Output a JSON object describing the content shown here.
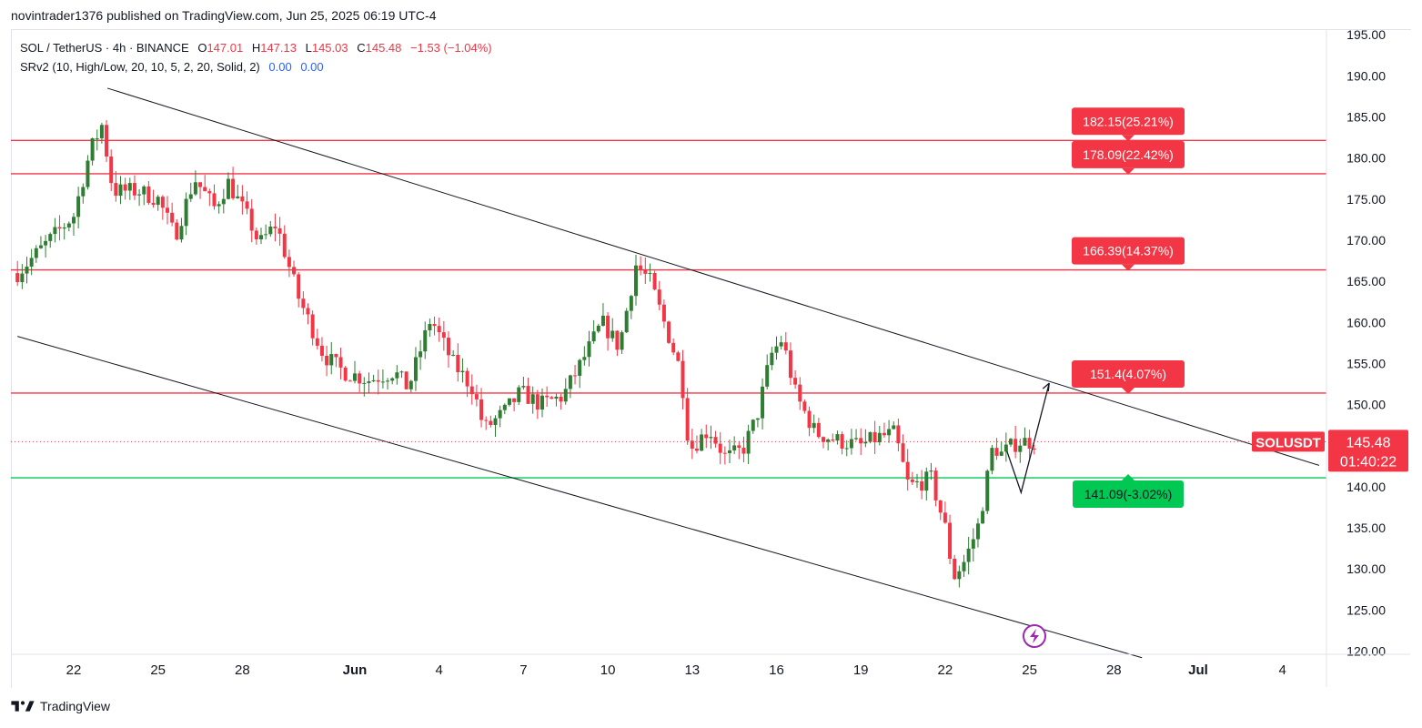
{
  "header": {
    "published_text": "novintrader1376 published on TradingView.com, Jun 25, 2025 06:19 UTC-4"
  },
  "legend": {
    "symbol_line": "SOL / TetherUS · 4h · BINANCE",
    "o_label": "O",
    "o_value": "147.01",
    "h_label": "H",
    "h_value": "147.13",
    "l_label": "L",
    "l_value": "145.03",
    "c_label": "C",
    "c_value": "145.48",
    "change": "−1.53 (−1.04%)",
    "indicator": "SRv2 (10, High/Low, 20, 10, 5, 2, 20, Solid, 2)",
    "indicator_v1": "0.00",
    "indicator_v2": "0.00"
  },
  "footer": {
    "brand": "TradingView"
  },
  "colors": {
    "up": "#22ab94",
    "down": "#f23645",
    "green_dark": "#2e7d32",
    "resistance": "#f23645",
    "support": "#00c853",
    "trend": "#131722",
    "grid": "#f0f3fa",
    "axis_text": "#131722"
  },
  "chart_data": {
    "type": "candlestick",
    "symbol": "SOLUSDT",
    "timeframe": "4h",
    "last_price": "145.48",
    "countdown": "01:40:22",
    "y_axis": {
      "ylim": [
        119,
        196
      ],
      "ticks": [
        "120.00",
        "125.00",
        "130.00",
        "135.00",
        "140.00",
        "145.00",
        "150.00",
        "155.00",
        "160.00",
        "165.00",
        "170.00",
        "175.00",
        "180.00",
        "185.00",
        "190.00",
        "195.00"
      ]
    },
    "x_axis": {
      "ticks": [
        {
          "label": "22",
          "day": 22.0
        },
        {
          "label": "25",
          "day": 25.0
        },
        {
          "label": "28",
          "day": 28.0
        },
        {
          "label": "Jun",
          "day": 32.0
        },
        {
          "label": "4",
          "day": 35.0
        },
        {
          "label": "7",
          "day": 38.0
        },
        {
          "label": "10",
          "day": 41.0
        },
        {
          "label": "13",
          "day": 44.0
        },
        {
          "label": "16",
          "day": 47.0
        },
        {
          "label": "19",
          "day": 50.0
        },
        {
          "label": "22",
          "day": 53.0
        },
        {
          "label": "25",
          "day": 56.0
        },
        {
          "label": "28",
          "day": 59.0
        },
        {
          "label": "Jul",
          "day": 62.0
        },
        {
          "label": "4",
          "day": 65.0
        }
      ]
    },
    "levels": [
      {
        "price": 182.15,
        "label": "182.15(25.21%)",
        "kind": "resistance"
      },
      {
        "price": 178.09,
        "label": "178.09(22.42%)",
        "kind": "resistance"
      },
      {
        "price": 166.39,
        "label": "166.39(14.37%)",
        "kind": "resistance"
      },
      {
        "price": 151.4,
        "label": "151.4(4.07%)",
        "kind": "resistance"
      },
      {
        "price": 141.09,
        "label": "141.09(-3.02%)",
        "kind": "support"
      }
    ],
    "trendlines": [
      {
        "x1": 23.2,
        "y1": 188.5,
        "x2": 66.3,
        "y2": 142.6
      },
      {
        "x1": 20.0,
        "y1": 158.3,
        "x2": 60.0,
        "y2": 119.2
      }
    ],
    "projection": [
      {
        "day": 55.2,
        "price": 144.3
      },
      {
        "day": 55.7,
        "price": 139.3
      },
      {
        "day": 56.7,
        "price": 152.6
      }
    ],
    "anchors": [
      {
        "day": 20.0,
        "price": 166
      },
      {
        "day": 22.0,
        "price": 173
      },
      {
        "day": 22.6,
        "price": 181
      },
      {
        "day": 23.0,
        "price": 184
      },
      {
        "day": 23.4,
        "price": 176
      },
      {
        "day": 24.3,
        "price": 176
      },
      {
        "day": 25.0,
        "price": 175
      },
      {
        "day": 25.6,
        "price": 170.5
      },
      {
        "day": 26.3,
        "price": 177.5
      },
      {
        "day": 27.0,
        "price": 174
      },
      {
        "day": 27.5,
        "price": 177
      },
      {
        "day": 28.3,
        "price": 172
      },
      {
        "day": 28.6,
        "price": 169.5
      },
      {
        "day": 29.2,
        "price": 172
      },
      {
        "day": 30.0,
        "price": 163
      },
      {
        "day": 30.9,
        "price": 156
      },
      {
        "day": 31.6,
        "price": 154
      },
      {
        "day": 32.5,
        "price": 153
      },
      {
        "day": 33.4,
        "price": 154
      },
      {
        "day": 33.9,
        "price": 152
      },
      {
        "day": 34.7,
        "price": 160.5
      },
      {
        "day": 35.5,
        "price": 155
      },
      {
        "day": 36.2,
        "price": 152
      },
      {
        "day": 36.6,
        "price": 147
      },
      {
        "day": 37.3,
        "price": 149
      },
      {
        "day": 37.9,
        "price": 151.5
      },
      {
        "day": 38.6,
        "price": 150
      },
      {
        "day": 39.4,
        "price": 151
      },
      {
        "day": 40.2,
        "price": 156
      },
      {
        "day": 40.8,
        "price": 160
      },
      {
        "day": 41.4,
        "price": 157
      },
      {
        "day": 42.0,
        "price": 167
      },
      {
        "day": 42.5,
        "price": 165
      },
      {
        "day": 43.2,
        "price": 158
      },
      {
        "day": 43.6,
        "price": 154
      },
      {
        "day": 43.9,
        "price": 144.5
      },
      {
        "day": 44.6,
        "price": 147
      },
      {
        "day": 45.2,
        "price": 143.5
      },
      {
        "day": 45.8,
        "price": 144.5
      },
      {
        "day": 46.3,
        "price": 148.5
      },
      {
        "day": 46.8,
        "price": 156
      },
      {
        "day": 47.2,
        "price": 158
      },
      {
        "day": 47.7,
        "price": 151
      },
      {
        "day": 48.4,
        "price": 146.5
      },
      {
        "day": 49.3,
        "price": 145.5
      },
      {
        "day": 50.0,
        "price": 145
      },
      {
        "day": 50.6,
        "price": 146
      },
      {
        "day": 51.2,
        "price": 146.5
      },
      {
        "day": 51.7,
        "price": 140
      },
      {
        "day": 52.5,
        "price": 141
      },
      {
        "day": 53.0,
        "price": 135
      },
      {
        "day": 53.3,
        "price": 129
      },
      {
        "day": 53.7,
        "price": 131
      },
      {
        "day": 54.2,
        "price": 135.5
      },
      {
        "day": 54.7,
        "price": 145
      },
      {
        "day": 55.0,
        "price": 144
      },
      {
        "day": 55.6,
        "price": 145.5
      },
      {
        "day": 56.2,
        "price": 145.48
      }
    ]
  }
}
